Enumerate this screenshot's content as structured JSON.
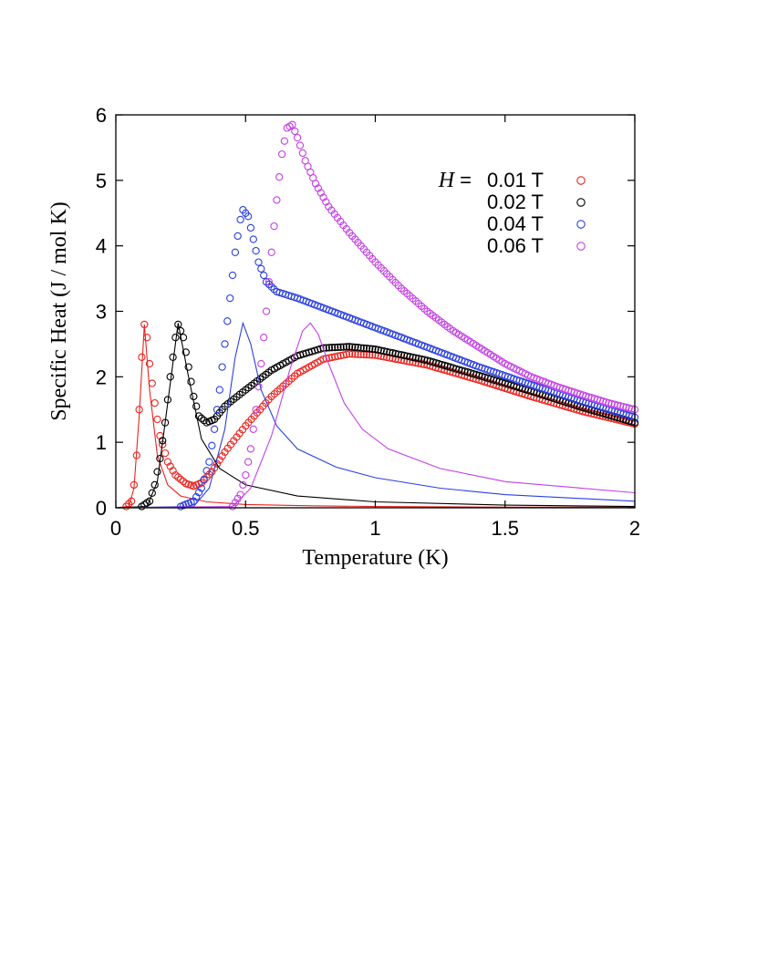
{
  "chart_data": {
    "type": "scatter",
    "title": "",
    "xlabel": "Temperature (K)",
    "ylabel": "Specific Heat (J / mol K)",
    "xlim": [
      0,
      2
    ],
    "ylim": [
      0,
      6
    ],
    "xticks": [
      0,
      0.5,
      1,
      1.5,
      2
    ],
    "xtick_labels": [
      "0",
      "0.5",
      "1",
      "1.5",
      "2"
    ],
    "yticks": [
      0,
      1,
      2,
      3,
      4,
      5,
      6
    ],
    "ytick_labels": [
      "0",
      "1",
      "2",
      "3",
      "4",
      "5",
      "6"
    ],
    "legend": {
      "placement": "top-right",
      "prefix_italic": "H",
      "prefix_rest": " = "
    },
    "series": [
      {
        "name": "0.01 T",
        "color": "#e8241f",
        "markers": [
          [
            0.04,
            0.02
          ],
          [
            0.06,
            0.1
          ],
          [
            0.07,
            0.35
          ],
          [
            0.08,
            0.8
          ],
          [
            0.09,
            1.5
          ],
          [
            0.1,
            2.3
          ],
          [
            0.11,
            2.8
          ],
          [
            0.12,
            2.6
          ],
          [
            0.13,
            2.2
          ],
          [
            0.15,
            1.6
          ],
          [
            0.17,
            1.1
          ],
          [
            0.2,
            0.7
          ],
          [
            0.23,
            0.5
          ],
          [
            0.27,
            0.37
          ],
          [
            0.3,
            0.33
          ],
          [
            0.33,
            0.38
          ],
          [
            0.37,
            0.55
          ],
          [
            0.42,
            0.85
          ],
          [
            0.5,
            1.25
          ],
          [
            0.6,
            1.7
          ],
          [
            0.7,
            2.05
          ],
          [
            0.8,
            2.27
          ],
          [
            0.9,
            2.35
          ],
          [
            1.0,
            2.33
          ],
          [
            1.2,
            2.18
          ],
          [
            1.4,
            1.95
          ],
          [
            1.6,
            1.7
          ],
          [
            1.8,
            1.47
          ],
          [
            2.0,
            1.28
          ]
        ],
        "fit": [
          [
            0,
            0
          ],
          [
            0.05,
            0.02
          ],
          [
            0.07,
            0.3
          ],
          [
            0.09,
            1.4
          ],
          [
            0.11,
            2.8
          ],
          [
            0.13,
            1.8
          ],
          [
            0.16,
            0.8
          ],
          [
            0.2,
            0.35
          ],
          [
            0.25,
            0.18
          ],
          [
            0.35,
            0.09
          ],
          [
            0.5,
            0.05
          ],
          [
            0.75,
            0.03
          ],
          [
            1.0,
            0.02
          ],
          [
            1.5,
            0.01
          ],
          [
            2.0,
            0.01
          ]
        ]
      },
      {
        "name": "0.02 T",
        "color": "#000000",
        "markers": [
          [
            0.1,
            0.02
          ],
          [
            0.13,
            0.1
          ],
          [
            0.15,
            0.35
          ],
          [
            0.17,
            0.75
          ],
          [
            0.19,
            1.3
          ],
          [
            0.21,
            2.0
          ],
          [
            0.23,
            2.6
          ],
          [
            0.24,
            2.8
          ],
          [
            0.26,
            2.6
          ],
          [
            0.28,
            2.15
          ],
          [
            0.3,
            1.7
          ],
          [
            0.32,
            1.4
          ],
          [
            0.35,
            1.3
          ],
          [
            0.38,
            1.35
          ],
          [
            0.42,
            1.55
          ],
          [
            0.5,
            1.8
          ],
          [
            0.6,
            2.1
          ],
          [
            0.7,
            2.32
          ],
          [
            0.8,
            2.44
          ],
          [
            0.9,
            2.46
          ],
          [
            1.0,
            2.42
          ],
          [
            1.2,
            2.25
          ],
          [
            1.4,
            2.02
          ],
          [
            1.6,
            1.78
          ],
          [
            1.8,
            1.53
          ],
          [
            2.0,
            1.3
          ]
        ],
        "fit": [
          [
            0,
            0
          ],
          [
            0.12,
            0.02
          ],
          [
            0.16,
            0.4
          ],
          [
            0.2,
            1.6
          ],
          [
            0.24,
            2.82
          ],
          [
            0.28,
            2.0
          ],
          [
            0.33,
            1.05
          ],
          [
            0.4,
            0.6
          ],
          [
            0.5,
            0.35
          ],
          [
            0.7,
            0.18
          ],
          [
            1.0,
            0.09
          ],
          [
            1.5,
            0.04
          ],
          [
            2.0,
            0.02
          ]
        ]
      },
      {
        "name": "0.04 T",
        "color": "#2b3fe0",
        "markers": [
          [
            0.25,
            0.02
          ],
          [
            0.3,
            0.1
          ],
          [
            0.33,
            0.3
          ],
          [
            0.36,
            0.7
          ],
          [
            0.38,
            1.2
          ],
          [
            0.4,
            1.8
          ],
          [
            0.42,
            2.5
          ],
          [
            0.44,
            3.2
          ],
          [
            0.46,
            3.9
          ],
          [
            0.48,
            4.4
          ],
          [
            0.49,
            4.55
          ],
          [
            0.51,
            4.45
          ],
          [
            0.53,
            4.1
          ],
          [
            0.55,
            3.75
          ],
          [
            0.58,
            3.45
          ],
          [
            0.62,
            3.3
          ],
          [
            0.7,
            3.2
          ],
          [
            0.8,
            3.05
          ],
          [
            0.9,
            2.9
          ],
          [
            1.0,
            2.75
          ],
          [
            1.2,
            2.45
          ],
          [
            1.4,
            2.15
          ],
          [
            1.6,
            1.88
          ],
          [
            1.8,
            1.62
          ],
          [
            2.0,
            1.38
          ]
        ],
        "fit": [
          [
            0,
            0
          ],
          [
            0.3,
            0.02
          ],
          [
            0.36,
            0.3
          ],
          [
            0.42,
            1.2
          ],
          [
            0.46,
            2.3
          ],
          [
            0.49,
            2.82
          ],
          [
            0.52,
            2.5
          ],
          [
            0.56,
            1.8
          ],
          [
            0.62,
            1.25
          ],
          [
            0.7,
            0.9
          ],
          [
            0.85,
            0.62
          ],
          [
            1.0,
            0.46
          ],
          [
            1.25,
            0.3
          ],
          [
            1.5,
            0.2
          ],
          [
            2.0,
            0.1
          ]
        ]
      },
      {
        "name": "0.06 T",
        "color": "#c43fe6",
        "markers": [
          [
            0.45,
            0.02
          ],
          [
            0.48,
            0.2
          ],
          [
            0.5,
            0.5
          ],
          [
            0.52,
            0.9
          ],
          [
            0.54,
            1.5
          ],
          [
            0.56,
            2.2
          ],
          [
            0.58,
            3.0
          ],
          [
            0.6,
            3.9
          ],
          [
            0.62,
            4.7
          ],
          [
            0.64,
            5.4
          ],
          [
            0.66,
            5.8
          ],
          [
            0.68,
            5.85
          ],
          [
            0.7,
            5.65
          ],
          [
            0.73,
            5.3
          ],
          [
            0.77,
            4.95
          ],
          [
            0.82,
            4.6
          ],
          [
            0.9,
            4.2
          ],
          [
            1.0,
            3.75
          ],
          [
            1.1,
            3.35
          ],
          [
            1.2,
            3.0
          ],
          [
            1.3,
            2.7
          ],
          [
            1.4,
            2.45
          ],
          [
            1.5,
            2.2
          ],
          [
            1.6,
            2.0
          ],
          [
            1.7,
            1.85
          ],
          [
            1.8,
            1.72
          ],
          [
            1.9,
            1.6
          ],
          [
            2.0,
            1.5
          ]
        ],
        "fit": [
          [
            0,
            0
          ],
          [
            0.45,
            0.02
          ],
          [
            0.52,
            0.3
          ],
          [
            0.6,
            1.1
          ],
          [
            0.67,
            2.1
          ],
          [
            0.72,
            2.7
          ],
          [
            0.75,
            2.82
          ],
          [
            0.78,
            2.65
          ],
          [
            0.82,
            2.2
          ],
          [
            0.88,
            1.6
          ],
          [
            0.95,
            1.2
          ],
          [
            1.05,
            0.9
          ],
          [
            1.25,
            0.6
          ],
          [
            1.5,
            0.4
          ],
          [
            2.0,
            0.23
          ]
        ]
      }
    ]
  }
}
